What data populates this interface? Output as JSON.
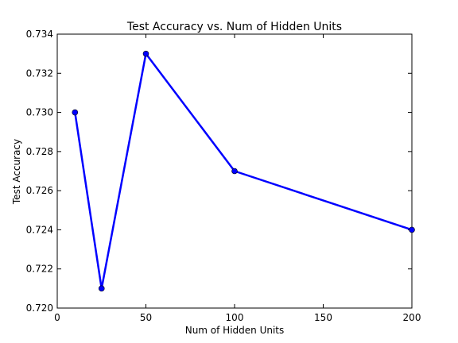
{
  "chart_data": {
    "type": "line",
    "title": "Test Accuracy vs. Num of Hidden Units",
    "xlabel": "Num of Hidden Units",
    "ylabel": "Test Accuracy",
    "xlim": [
      0,
      200
    ],
    "ylim": [
      0.72,
      0.734
    ],
    "xticks": [
      0,
      50,
      100,
      150,
      200
    ],
    "xtick_labels": [
      "0",
      "50",
      "100",
      "150",
      "200"
    ],
    "yticks": [
      0.72,
      0.722,
      0.724,
      0.726,
      0.728,
      0.73,
      0.732,
      0.734
    ],
    "ytick_labels": [
      "0.720",
      "0.722",
      "0.724",
      "0.726",
      "0.728",
      "0.730",
      "0.732",
      "0.734"
    ],
    "grid": false,
    "series": [
      {
        "color": "#0000ff",
        "marker": "circle",
        "x": [
          10,
          25,
          50,
          100,
          200
        ],
        "y": [
          0.73,
          0.721,
          0.733,
          0.727,
          0.724
        ]
      }
    ]
  }
}
